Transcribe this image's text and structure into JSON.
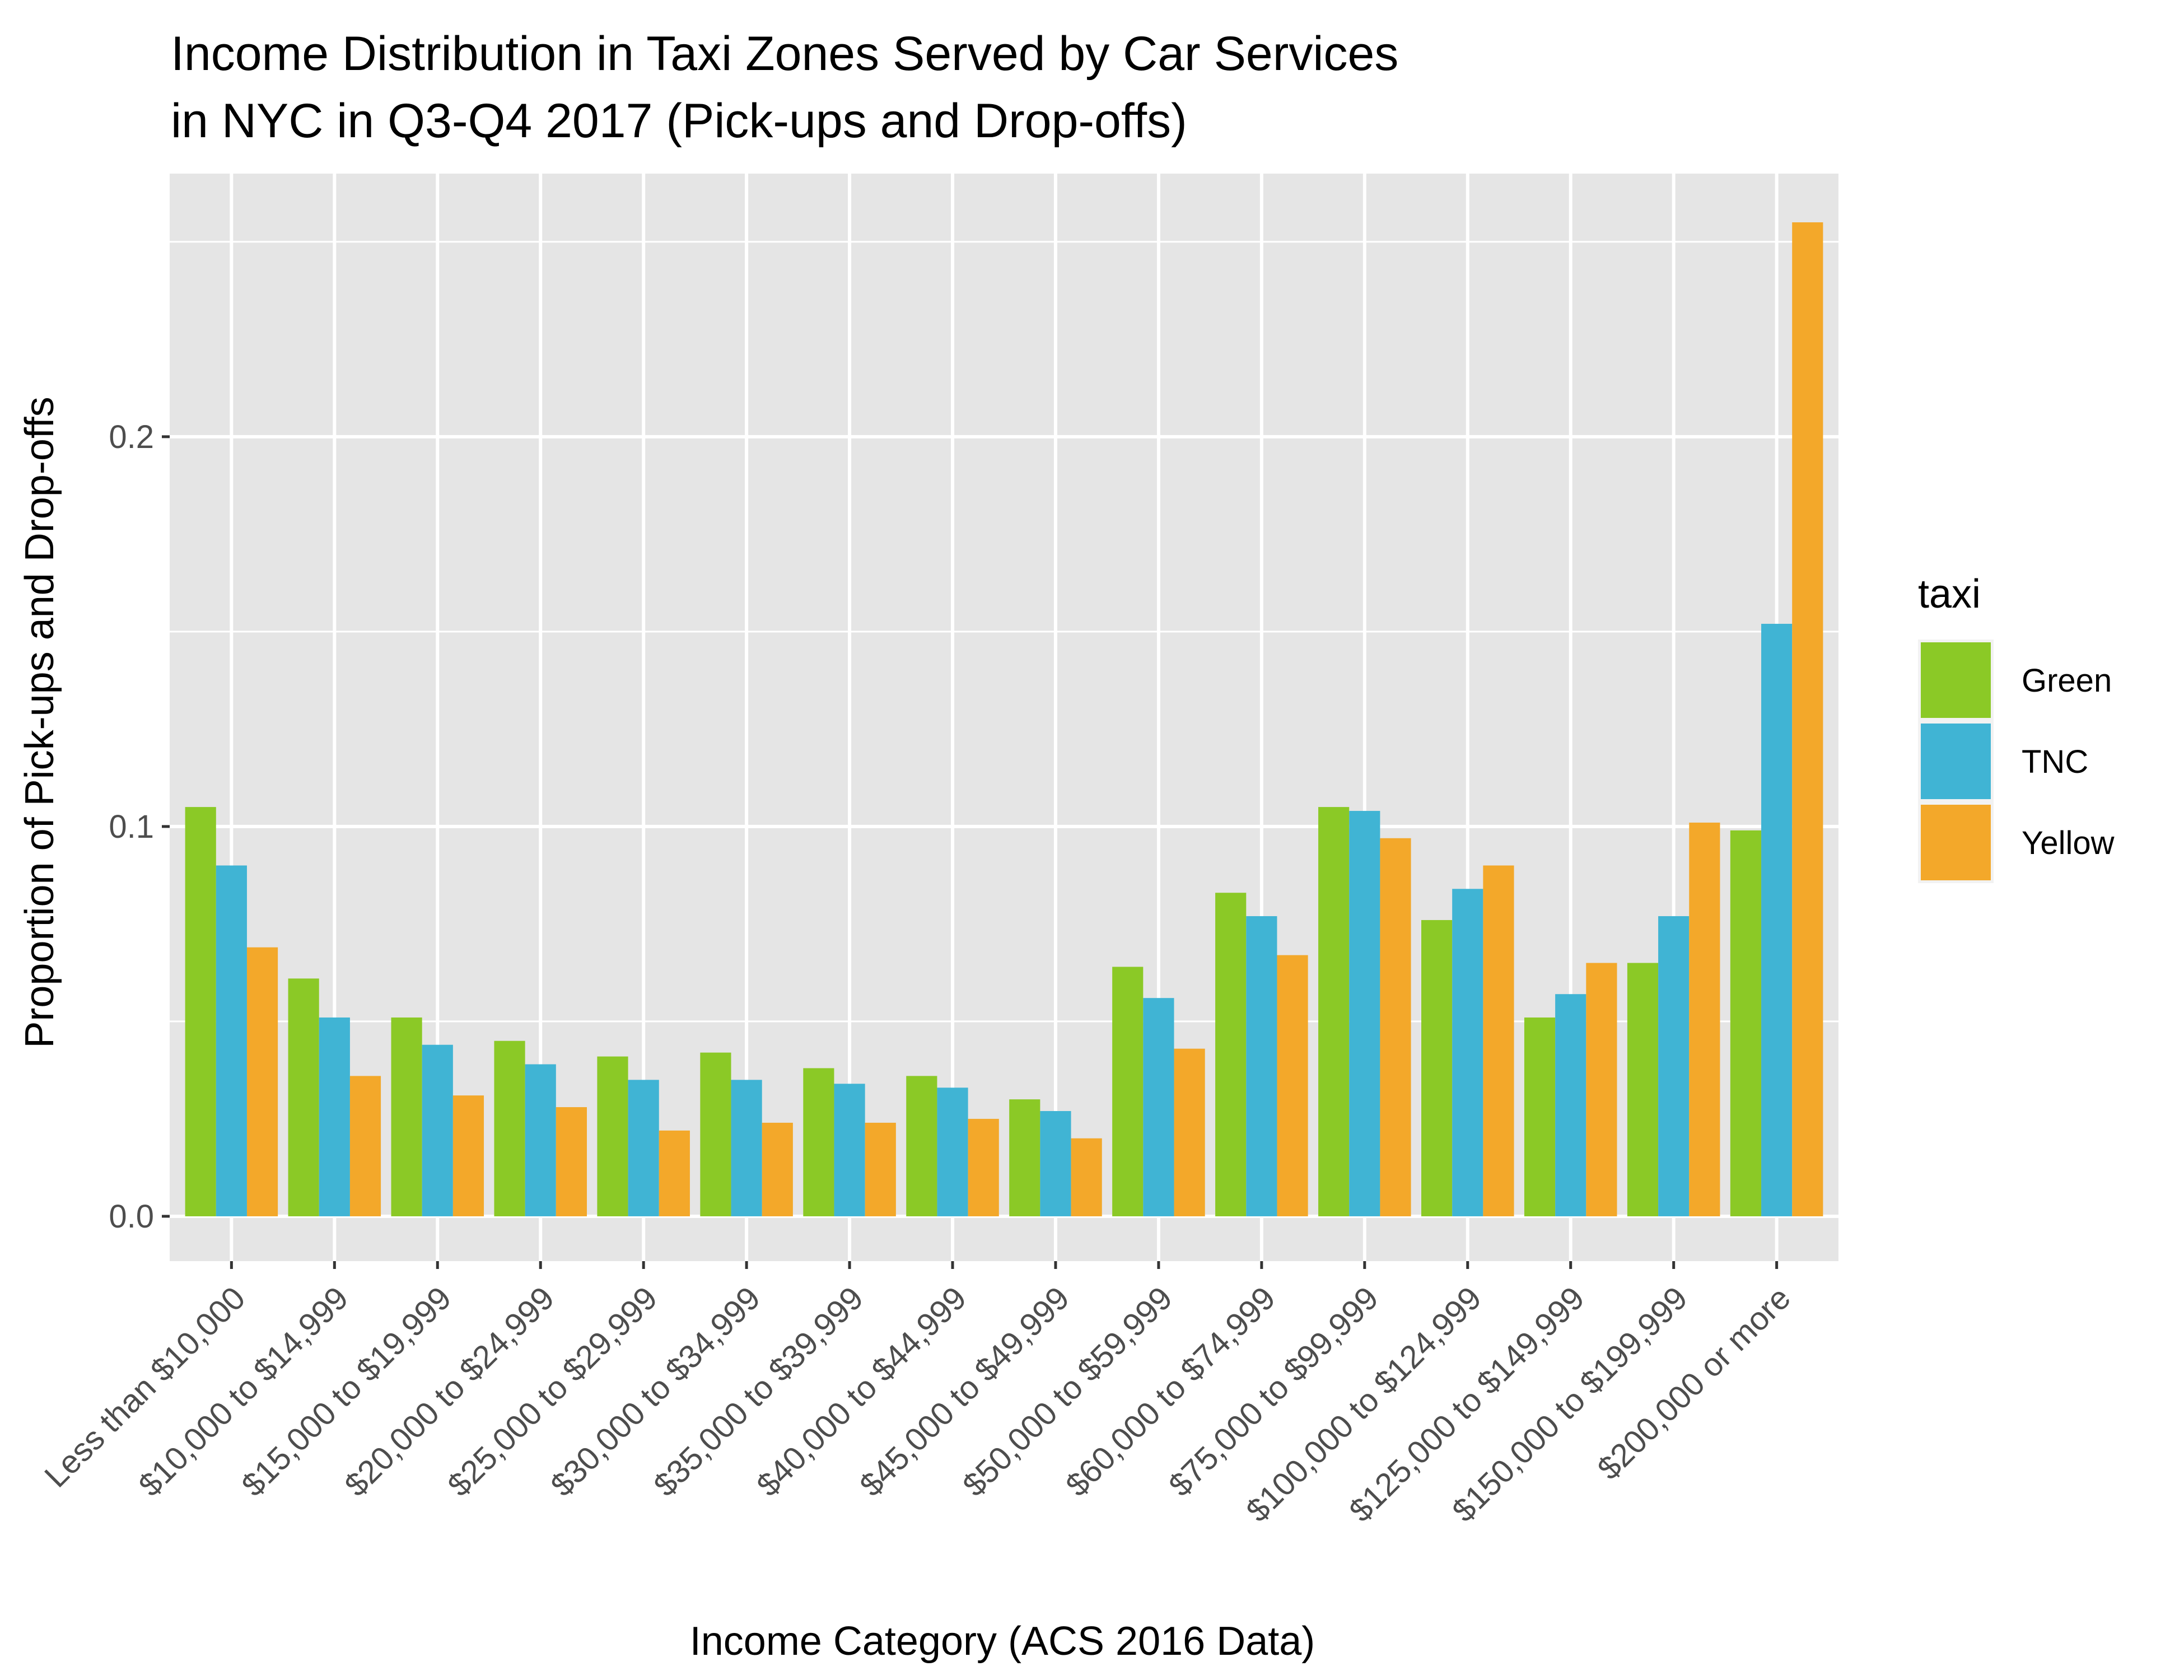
{
  "chart_data": {
    "type": "bar",
    "title": "Income Distribution in Taxi Zones Served by Car Services\nin NYC in Q3-Q4 2017 (Pick-ups and Drop-offs)",
    "xlabel": "Income Category (ACS 2016 Data)",
    "ylabel": "Proportion of Pick-ups and Drop-offs",
    "ylim": [
      -0.0115,
      0.2675
    ],
    "yticks": [
      0.0,
      0.1,
      0.2
    ],
    "ytick_labels": [
      "0.0",
      "0.1",
      "0.2"
    ],
    "grid": true,
    "legend_position": "right",
    "legend_title": "taxi",
    "categories": [
      "Less than $10,000",
      "$10,000 to $14,999",
      "$15,000 to $19,999",
      "$20,000 to $24,999",
      "$25,000 to $29,999",
      "$30,000 to $34,999",
      "$35,000 to $39,999",
      "$40,000 to $44,999",
      "$45,000 to $49,999",
      "$50,000 to $59,999",
      "$60,000 to $74,999",
      "$75,000 to $99,999",
      "$100,000 to $124,999",
      "$125,000 to $149,999",
      "$150,000 to $199,999",
      "$200,000 or more"
    ],
    "series": [
      {
        "name": "Green",
        "color": "#8bc926",
        "values": [
          0.105,
          0.061,
          0.051,
          0.045,
          0.041,
          0.042,
          0.038,
          0.036,
          0.03,
          0.064,
          0.083,
          0.105,
          0.076,
          0.051,
          0.065,
          0.099
        ]
      },
      {
        "name": "TNC",
        "color": "#40b4d4",
        "values": [
          0.09,
          0.051,
          0.044,
          0.039,
          0.035,
          0.035,
          0.034,
          0.033,
          0.027,
          0.056,
          0.077,
          0.104,
          0.084,
          0.057,
          0.077,
          0.152
        ]
      },
      {
        "name": "Yellow",
        "color": "#f3a82a",
        "values": [
          0.069,
          0.036,
          0.031,
          0.028,
          0.022,
          0.024,
          0.024,
          0.025,
          0.02,
          0.043,
          0.067,
          0.097,
          0.09,
          0.065,
          0.101,
          0.255
        ]
      }
    ],
    "colors": {
      "panel_background": "#e5e5e5",
      "grid_line": "#ffffff",
      "tick_text": "#4d4d4d"
    }
  }
}
